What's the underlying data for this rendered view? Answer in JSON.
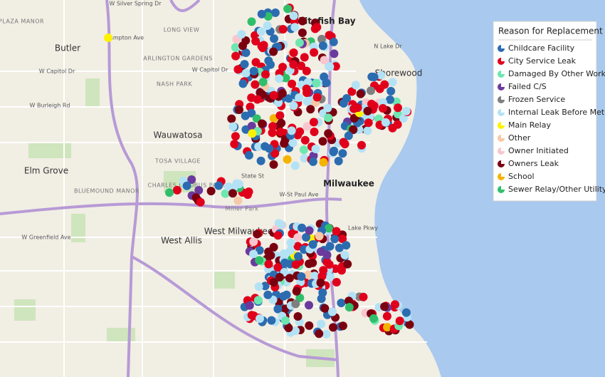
{
  "map": {
    "labels": [
      "Whitefish Bay",
      "Shorewood",
      "Butler",
      "Wauwatosa",
      "Elm Grove",
      "Milwaukee",
      "West Allis",
      "PLAZA MANOR",
      "Hampton Ave",
      "W Capitol Dr",
      "W Burleigh Rd",
      "LONG VIEW",
      "ARLINGTON GARDENS",
      "NASH PARK",
      "TOSA VILLAGE",
      "BLUEMOUND MANOR",
      "CHARLES JACOBUS PARK",
      "Miller Park",
      "West Milwaukee",
      "W Greenfield Ave",
      "W-St Paul Ave",
      "State St",
      "Lake Pkwy",
      "N Lake Dr",
      "W Silver Spring Dr",
      "W Capitol Dr"
    ]
  },
  "legend": {
    "title": "Reason for Replacement",
    "items": [
      {
        "label": "Childcare Facility",
        "color": "#2b6cb0"
      },
      {
        "label": "City Service Leak",
        "color": "#e0001b"
      },
      {
        "label": "Damaged By Other Work",
        "color": "#6ee6b0"
      },
      {
        "label": "Failed C/S",
        "color": "#6a3a9c"
      },
      {
        "label": "Frozen Service",
        "color": "#7f7f7f"
      },
      {
        "label": "Internal Leak Before Meter",
        "color": "#b3e2f5"
      },
      {
        "label": "Main Relay",
        "color": "#fff200"
      },
      {
        "label": "Other",
        "color": "#f6c9a8"
      },
      {
        "label": "Owner Initiated",
        "color": "#f7c6cf"
      },
      {
        "label": "Owners Leak",
        "color": "#7a0010"
      },
      {
        "label": "School",
        "color": "#f4b400"
      },
      {
        "label": "Sewer Relay/Other Utility",
        "color": "#2fbf6a"
      }
    ]
  }
}
